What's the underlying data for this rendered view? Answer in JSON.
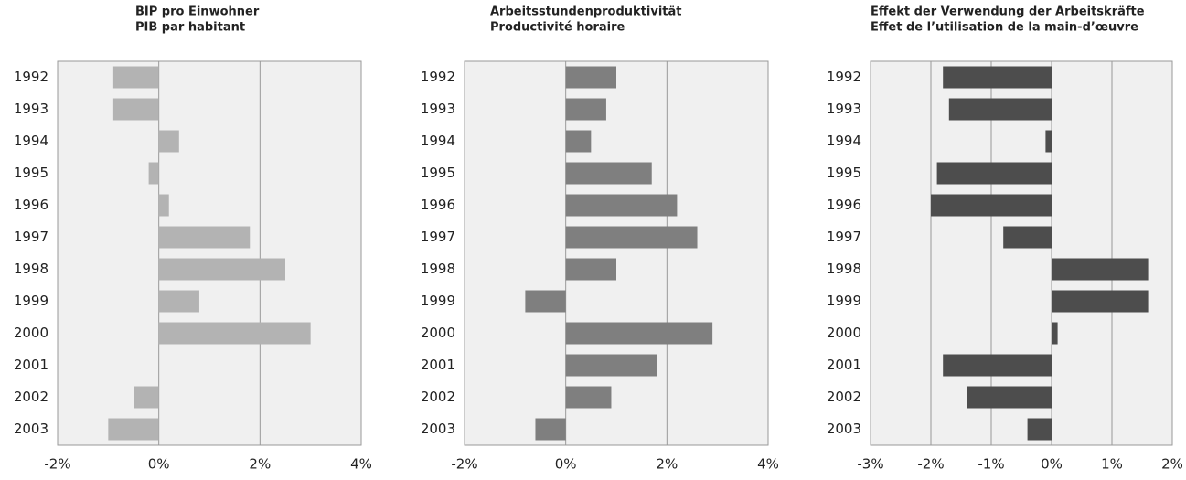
{
  "chart_data": [
    {
      "type": "bar",
      "orientation": "horizontal",
      "title_lines": [
        "BIP pro Einwohner",
        "PIB par habitant"
      ],
      "categories": [
        "1992",
        "1993",
        "1994",
        "1995",
        "1996",
        "1997",
        "1998",
        "1999",
        "2000",
        "2001",
        "2002",
        "2003"
      ],
      "values": [
        -0.9,
        -0.9,
        0.4,
        -0.2,
        0.2,
        1.8,
        2.5,
        0.8,
        3.0,
        0,
        -0.5,
        -1.0
      ],
      "color": "#b3b3b3",
      "xlim": [
        -2,
        4
      ],
      "xticks": [
        {
          "value": -2,
          "label": "-2%"
        },
        {
          "value": 0,
          "label": "0%"
        },
        {
          "value": 2,
          "label": "2%"
        },
        {
          "value": 4,
          "label": "4%"
        }
      ],
      "grid": true
    },
    {
      "type": "bar",
      "orientation": "horizontal",
      "title_lines": [
        "Arbeitsstundenproduktivität",
        "Productivité horaire"
      ],
      "categories": [
        "1992",
        "1993",
        "1994",
        "1995",
        "1996",
        "1997",
        "1998",
        "1999",
        "2000",
        "2001",
        "2002",
        "2003"
      ],
      "values": [
        1.0,
        0.8,
        0.5,
        1.7,
        2.2,
        2.6,
        1.0,
        -0.8,
        2.9,
        1.8,
        0.9,
        -0.6
      ],
      "color": "#7f7f7f",
      "xlim": [
        -2,
        4
      ],
      "xticks": [
        {
          "value": -2,
          "label": "-2%"
        },
        {
          "value": 0,
          "label": "0%"
        },
        {
          "value": 2,
          "label": "2%"
        },
        {
          "value": 4,
          "label": "4%"
        }
      ],
      "grid": true
    },
    {
      "type": "bar",
      "orientation": "horizontal",
      "title_lines": [
        "Effekt der Verwendung der Arbeitskräfte",
        "Effet de l’utilisation de la main-d’œuvre"
      ],
      "categories": [
        "1992",
        "1993",
        "1994",
        "1995",
        "1996",
        "1997",
        "1998",
        "1999",
        "2000",
        "2001",
        "2002",
        "2003"
      ],
      "values": [
        -1.8,
        -1.7,
        -0.1,
        -1.9,
        -2.0,
        -0.8,
        1.6,
        1.6,
        0.1,
        -1.8,
        -1.4,
        -0.4
      ],
      "color": "#4d4d4d",
      "xlim": [
        -3,
        2
      ],
      "xticks": [
        {
          "value": -3,
          "label": "-3%"
        },
        {
          "value": -2,
          "label": "-2%"
        },
        {
          "value": -1,
          "label": "-1%"
        },
        {
          "value": 0,
          "label": "0%"
        },
        {
          "value": 1,
          "label": "1%"
        },
        {
          "value": 2,
          "label": "2%"
        }
      ],
      "grid": true
    }
  ]
}
